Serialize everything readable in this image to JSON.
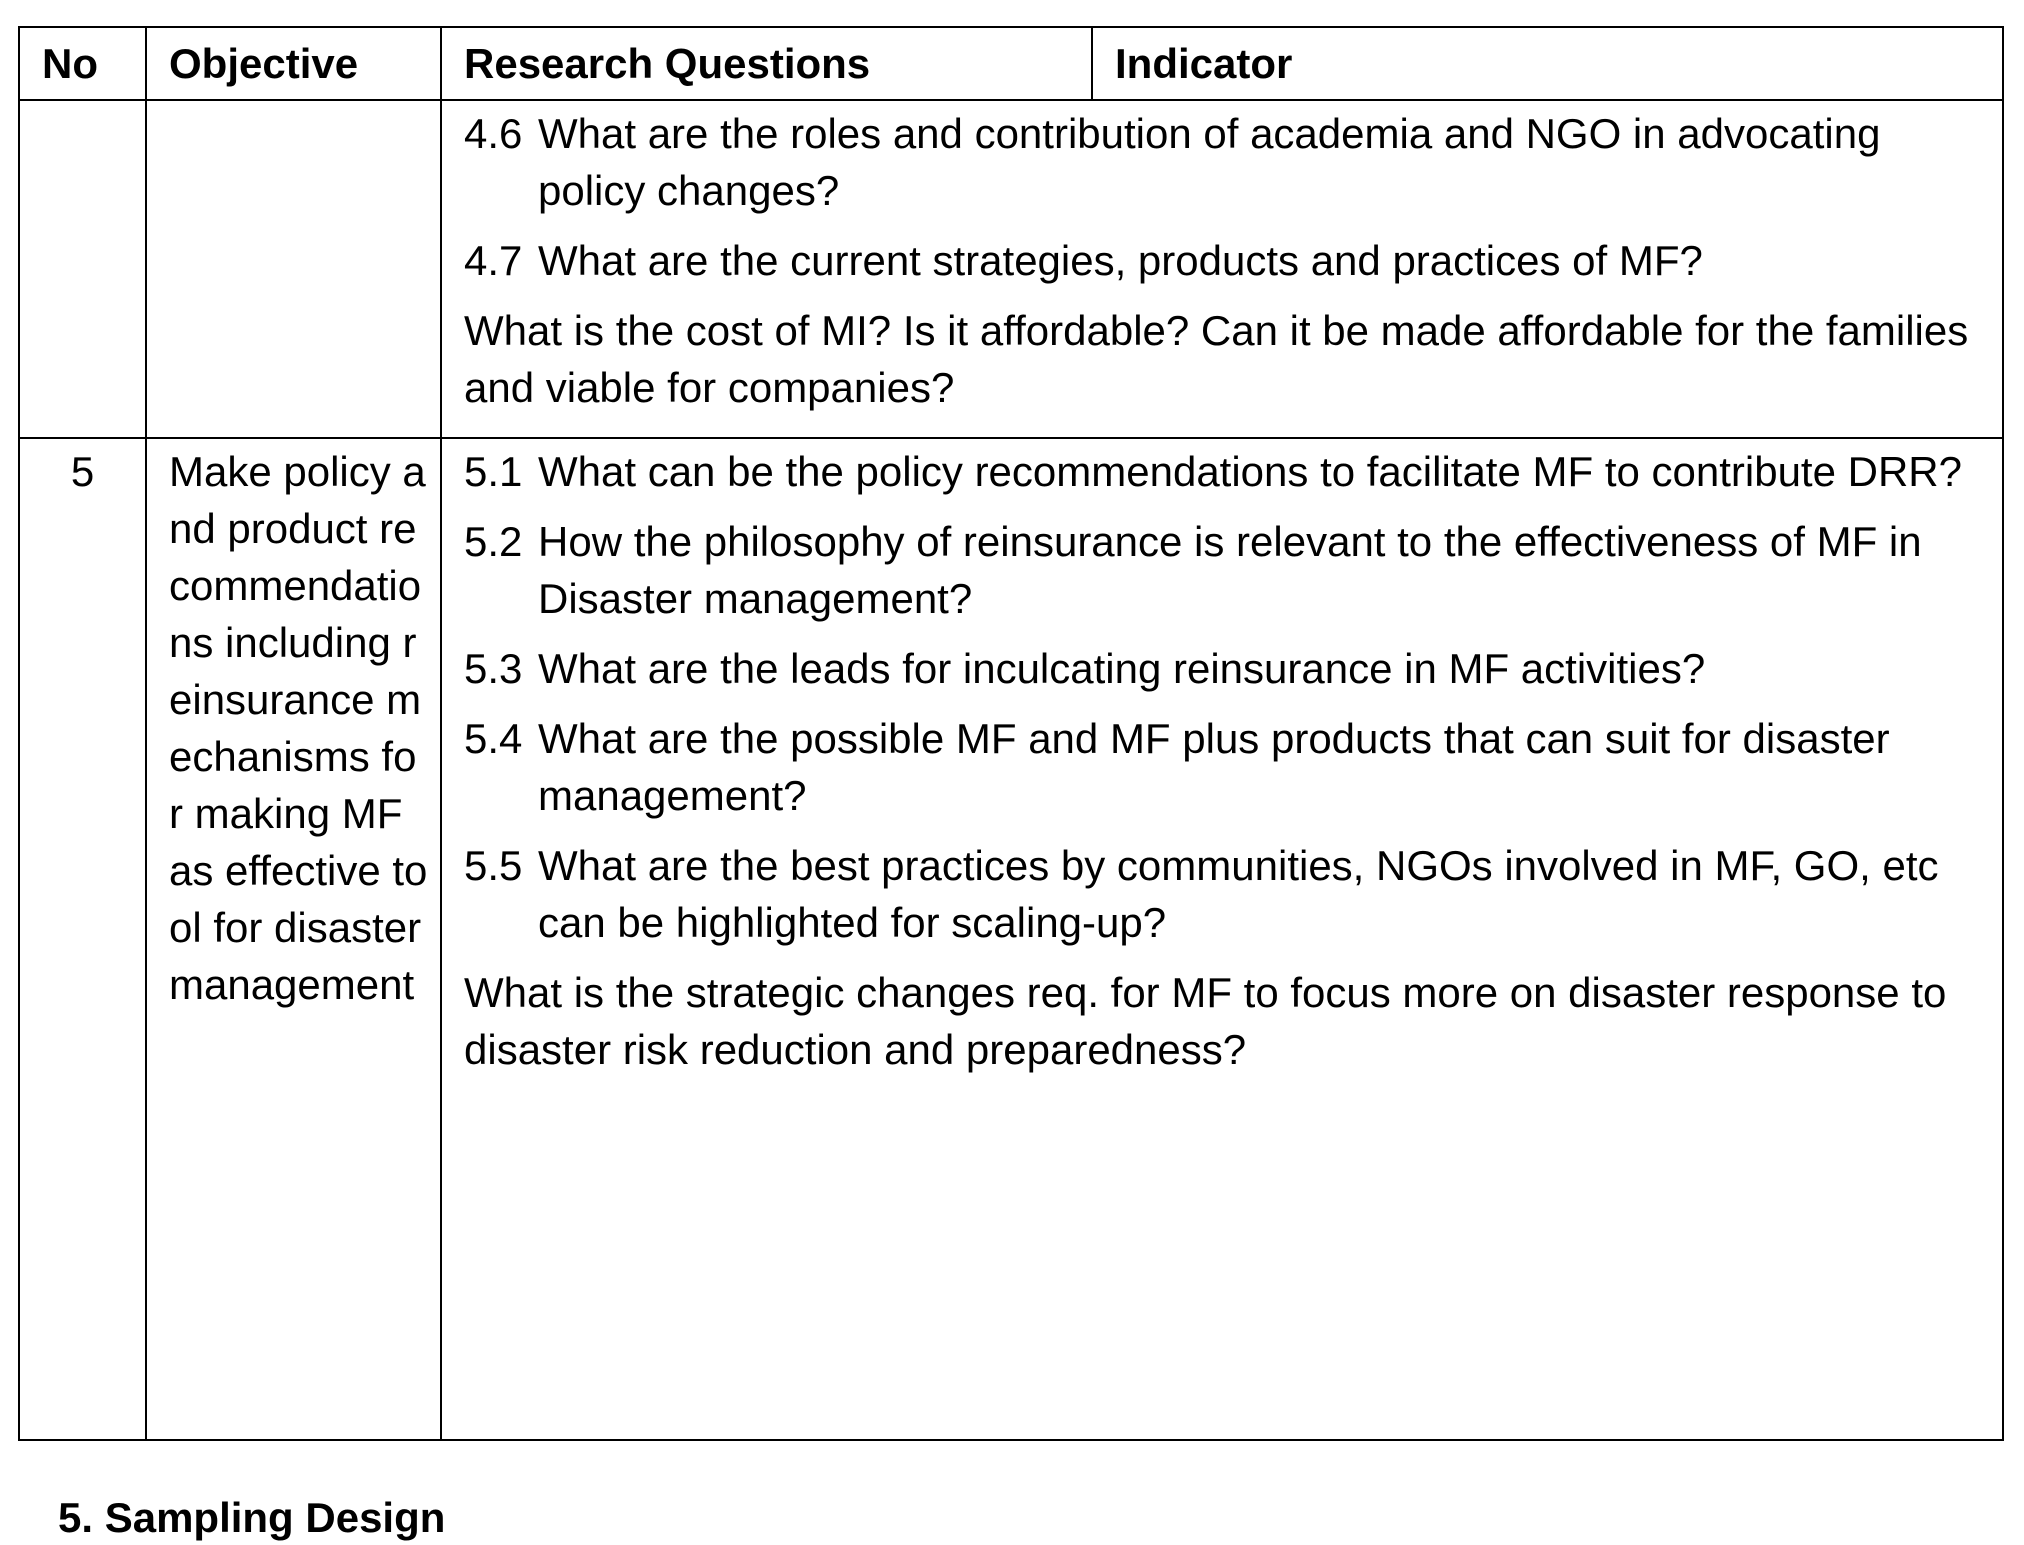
{
  "header": {
    "columns": [
      "No",
      "Objective",
      "Research Questions",
      "Indicator"
    ]
  },
  "table": {
    "rows": [
      {
        "questions": [
          {
            "num": "4.6",
            "text": "What are the roles and contribution of academia and NGO in advocating policy changes?"
          },
          {
            "num": "4.7",
            "text": "What are the current strategies, products and practices of MF?"
          },
          {
            "text": "What is the cost of MI? Is it affordable? Can it be made affordable for the families and viable for companies?"
          }
        ]
      },
      {
        "no": "5",
        "objective": "Make policy and product recommendations including reinsurance mechanisms for making MF as effective tool for disaster management",
        "questions": [
          {
            "num": "5.1",
            "text": "What can be the policy recommendations to facilitate MF to contribute DRR?"
          },
          {
            "num": "5.2",
            "text": "How the philosophy of reinsurance is relevant to the effectiveness of MF in Disaster management?"
          },
          {
            "num": "5.3",
            "text": "What are the leads for inculcating reinsurance in MF activities?"
          },
          {
            "num": "5.4",
            "text": "What are the possible MF and MF plus products that can suit for disaster management?"
          },
          {
            "num": "5.5",
            "text": "What are the best practices by communities, NGOs involved in MF, GO, etc can be highlighted for scaling-up?"
          },
          {
            "text": "What is the strategic changes req. for MF to focus more on disaster response to disaster risk reduction and preparedness?"
          }
        ]
      }
    ]
  },
  "section": {
    "heading": "5. Sampling Design"
  }
}
